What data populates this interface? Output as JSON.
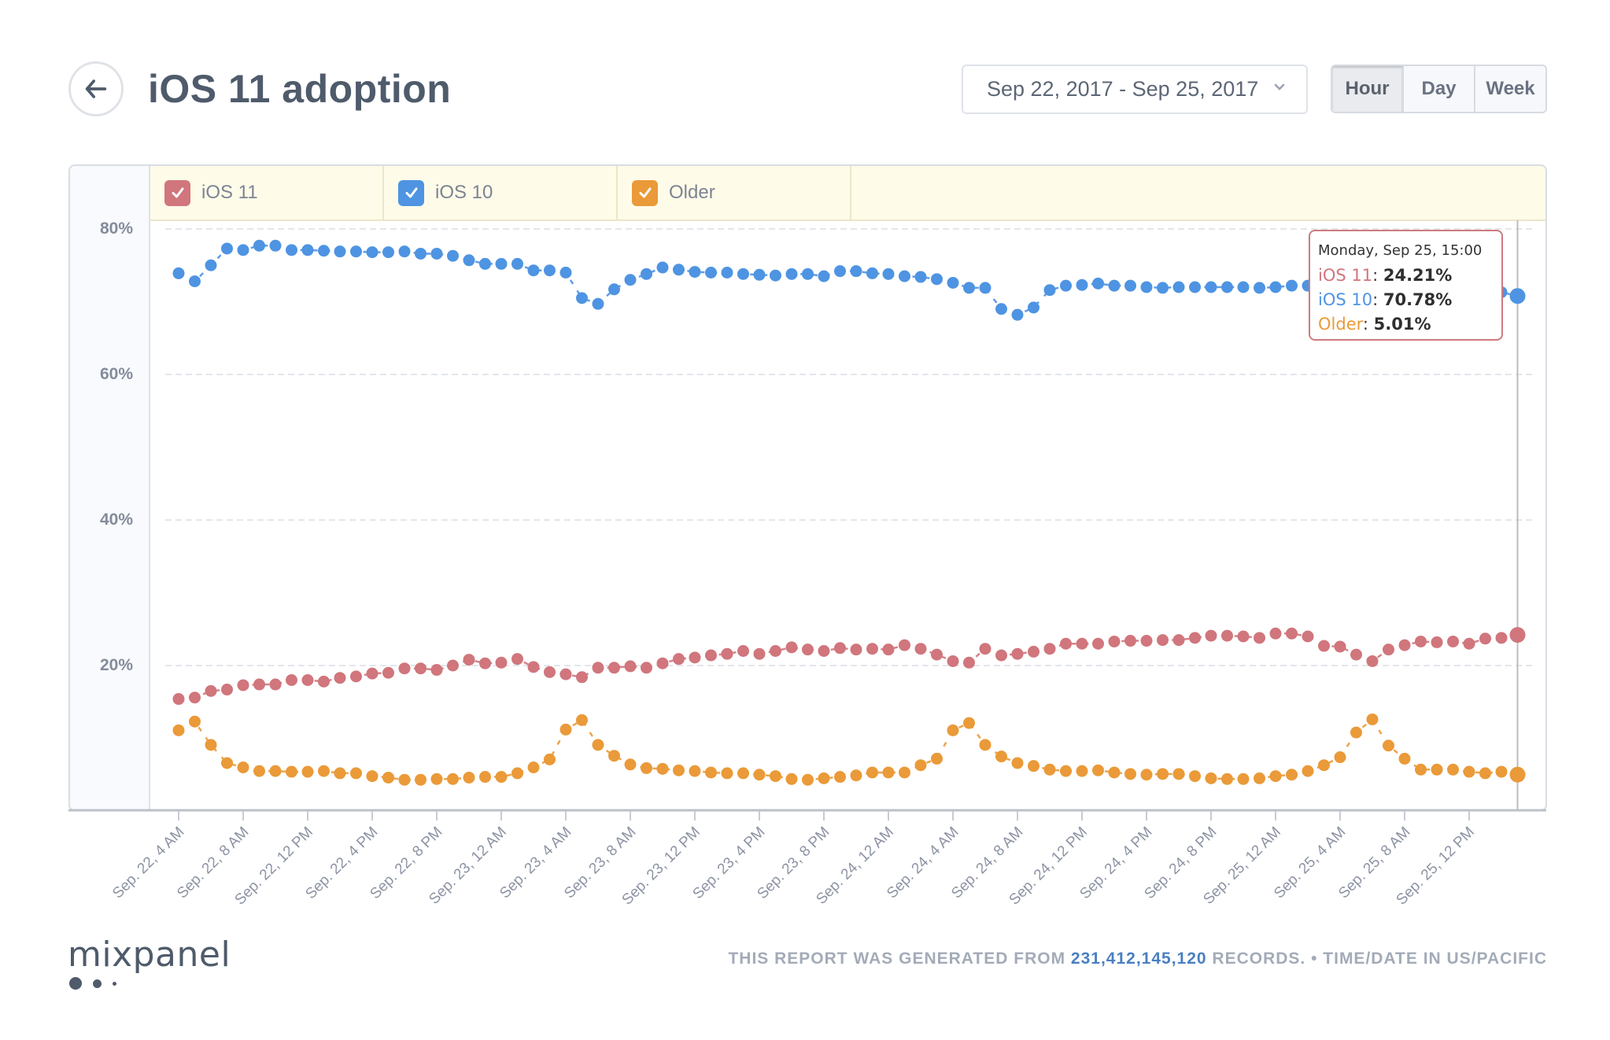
{
  "header": {
    "back_label": "Back",
    "title": "iOS 11 adoption",
    "date_range": "Sep 22, 2017 - Sep 25, 2017",
    "granularity_options": [
      "Hour",
      "Day",
      "Week"
    ],
    "granularity_selected": "Hour"
  },
  "legend": [
    {
      "label": "iOS 11",
      "color": "#d0767c",
      "checked": true
    },
    {
      "label": "iOS 10",
      "color": "#4e94e2",
      "checked": true
    },
    {
      "label": "Older",
      "color": "#ea9a38",
      "checked": true
    }
  ],
  "tooltip": {
    "date": "Monday, Sep 25, 15:00",
    "rows": [
      {
        "name": "iOS 11",
        "value": "24.21%",
        "color": "#d0767c"
      },
      {
        "name": "iOS 10",
        "value": "70.78%",
        "color": "#4e94e2"
      },
      {
        "name": "Older",
        "value": "5.01%",
        "color": "#ea9a38"
      }
    ]
  },
  "footer": {
    "prefix": "THIS REPORT WAS GENERATED FROM ",
    "records": "231,412,145,120",
    "suffix": " RECORDS. • TIME/DATE IN US/PACIFIC",
    "logo": "mixpanel"
  },
  "chart_data": {
    "type": "line",
    "title": "iOS 11 adoption",
    "xlabel": "",
    "ylabel": "",
    "ylim": [
      0,
      80
    ],
    "yticks": [
      "20%",
      "40%",
      "60%",
      "80%"
    ],
    "grid": true,
    "legend_position": "top",
    "x_start": "Sep 22, 2017 04:00",
    "x_step": "1 hour",
    "x_tick_labels": [
      "Sep. 22, 4 AM",
      "Sep. 22, 8 AM",
      "Sep. 22, 12 PM",
      "Sep. 22, 4 PM",
      "Sep. 22, 8 PM",
      "Sep. 23, 12 AM",
      "Sep. 23, 4 AM",
      "Sep. 23, 8 AM",
      "Sep. 23, 12 PM",
      "Sep. 23, 4 PM",
      "Sep. 23, 8 PM",
      "Sep. 24, 12 AM",
      "Sep. 24, 4 AM",
      "Sep. 24, 8 AM",
      "Sep. 24, 12 PM",
      "Sep. 24, 4 PM",
      "Sep. 24, 8 PM",
      "Sep. 25, 12 AM",
      "Sep. 25, 4 AM",
      "Sep. 25, 8 AM",
      "Sep. 25, 12 PM"
    ],
    "x_tick_every": 4,
    "hover_index": 83,
    "series": [
      {
        "name": "iOS 10",
        "color": "#4e94e2",
        "values": [
          73.9,
          72.8,
          75.0,
          77.3,
          77.1,
          77.7,
          77.7,
          77.1,
          77.1,
          77.0,
          76.9,
          76.9,
          76.8,
          76.8,
          76.9,
          76.6,
          76.6,
          76.3,
          75.7,
          75.2,
          75.2,
          75.2,
          74.3,
          74.3,
          74.0,
          70.5,
          69.7,
          71.7,
          73.0,
          73.8,
          74.7,
          74.4,
          74.1,
          74.0,
          74.0,
          73.8,
          73.7,
          73.6,
          73.8,
          73.8,
          73.5,
          74.2,
          74.2,
          73.9,
          73.8,
          73.5,
          73.4,
          73.1,
          72.6,
          71.9,
          71.9,
          69.0,
          68.2,
          69.2,
          71.6,
          72.2,
          72.3,
          72.5,
          72.2,
          72.2,
          72.0,
          71.9,
          72.0,
          72.0,
          72.0,
          72.0,
          72.0,
          71.9,
          72.0,
          72.2,
          72.2,
          71.6,
          71.5,
          71.3,
          71.6,
          71.5,
          71.5,
          71.5,
          71.3,
          71.3,
          71.3,
          71.3,
          71.3,
          70.78
        ]
      },
      {
        "name": "iOS 11",
        "color": "#d0767c",
        "values": [
          15.4,
          15.6,
          16.5,
          16.7,
          17.3,
          17.4,
          17.4,
          18.0,
          18.0,
          17.8,
          18.3,
          18.5,
          18.9,
          19.0,
          19.6,
          19.6,
          19.4,
          20.0,
          20.8,
          20.3,
          20.4,
          20.9,
          19.8,
          19.1,
          18.8,
          18.4,
          19.7,
          19.7,
          19.9,
          19.7,
          20.3,
          20.9,
          21.1,
          21.4,
          21.6,
          22.0,
          21.6,
          22.0,
          22.5,
          22.2,
          22.0,
          22.4,
          22.2,
          22.3,
          22.2,
          22.8,
          22.3,
          21.5,
          20.6,
          20.4,
          22.3,
          21.4,
          21.6,
          21.9,
          22.3,
          23.0,
          23.0,
          23.0,
          23.3,
          23.4,
          23.4,
          23.5,
          23.5,
          23.8,
          24.1,
          24.1,
          24.0,
          23.8,
          24.4,
          24.4,
          24.0,
          22.7,
          22.6,
          21.5,
          20.6,
          22.2,
          22.8,
          23.3,
          23.2,
          23.3,
          23.0,
          23.7,
          23.8,
          24.21
        ]
      },
      {
        "name": "Older",
        "color": "#ea9a38",
        "values": [
          11.1,
          12.3,
          9.1,
          6.6,
          6.0,
          5.5,
          5.5,
          5.4,
          5.4,
          5.5,
          5.2,
          5.2,
          4.8,
          4.6,
          4.3,
          4.3,
          4.4,
          4.4,
          4.6,
          4.7,
          4.7,
          5.2,
          6.0,
          7.1,
          11.2,
          12.5,
          9.1,
          7.6,
          6.4,
          5.9,
          5.8,
          5.6,
          5.5,
          5.3,
          5.2,
          5.2,
          5.0,
          4.8,
          4.4,
          4.3,
          4.5,
          4.7,
          4.9,
          5.3,
          5.3,
          5.3,
          6.3,
          7.2,
          11.1,
          12.1,
          9.1,
          7.5,
          6.6,
          6.2,
          5.7,
          5.5,
          5.5,
          5.6,
          5.3,
          5.1,
          5.0,
          5.1,
          5.1,
          4.8,
          4.5,
          4.4,
          4.4,
          4.5,
          4.8,
          5.0,
          5.5,
          6.3,
          7.4,
          10.8,
          12.6,
          9.0,
          7.2,
          5.7,
          5.7,
          5.7,
          5.4,
          5.2,
          5.4,
          5.01
        ]
      }
    ]
  }
}
